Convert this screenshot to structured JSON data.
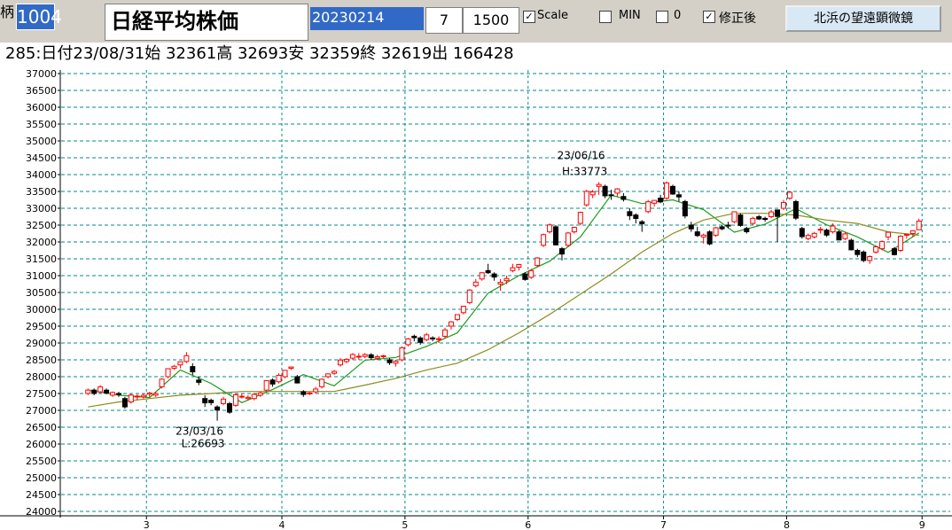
{
  "toolbar": {
    "label": "柄",
    "code": "1004",
    "name": "日経平均株価",
    "date": "20230214",
    "period": "7",
    "count": "1500",
    "scale": "Scale",
    "min": "MIN",
    "zero": "0",
    "adjusted": "修正後",
    "button": "北浜の望遠顕微鏡"
  },
  "info": "285:日付23/08/31始 32361高 32693安 32359終 32619出 166428",
  "chart_data": {
    "type": "candlestick",
    "up_color": "#ff0000",
    "down_color": "#000000",
    "grid": true,
    "grid_color": "#008b8b",
    "ylim": [
      24000,
      37000
    ],
    "yticks": [
      24000,
      24500,
      25000,
      25500,
      26000,
      26500,
      27000,
      27500,
      28000,
      28500,
      29000,
      29500,
      30000,
      30500,
      31000,
      31500,
      32000,
      32500,
      33000,
      33500,
      34000,
      34500,
      35000,
      35500,
      36000,
      36500,
      37000
    ],
    "xlim": [
      -4,
      140
    ],
    "xticks": [
      {
        "value": 10,
        "label": "3"
      },
      {
        "value": 32,
        "label": "4"
      },
      {
        "value": 52,
        "label": "5"
      },
      {
        "value": 72,
        "label": "6"
      },
      {
        "value": 94,
        "label": "7"
      },
      {
        "value": 114,
        "label": "8"
      },
      {
        "value": 136,
        "label": "9"
      }
    ],
    "candles": [
      [
        27500,
        27650,
        27450,
        27602
      ],
      [
        27600,
        27650,
        27450,
        27501
      ],
      [
        27550,
        27750,
        27500,
        27696
      ],
      [
        27600,
        27650,
        27480,
        27513
      ],
      [
        27450,
        27560,
        27400,
        27531
      ],
      [
        27500,
        27550,
        27400,
        27473
      ],
      [
        27350,
        27400,
        27050,
        27104
      ],
      [
        27250,
        27500,
        27200,
        27453
      ],
      [
        27400,
        27480,
        27300,
        27423
      ],
      [
        27400,
        27500,
        27350,
        27445
      ],
      [
        27480,
        27550,
        27400,
        27516
      ],
      [
        27450,
        27550,
        27400,
        27498
      ],
      [
        27700,
        27950,
        27650,
        27927
      ],
      [
        28000,
        28250,
        27950,
        28237
      ],
      [
        28250,
        28350,
        28200,
        28309
      ],
      [
        28350,
        28450,
        28250,
        28444
      ],
      [
        28450,
        28730,
        28400,
        28623
      ],
      [
        28300,
        28400,
        28050,
        28143
      ],
      [
        27900,
        28000,
        27750,
        27832
      ],
      [
        27350,
        27450,
        27100,
        27222
      ],
      [
        27300,
        27350,
        27150,
        27229
      ],
      [
        27100,
        27150,
        26693,
        27010
      ],
      [
        27200,
        27400,
        27150,
        27333
      ],
      [
        27200,
        27250,
        26900,
        26945
      ],
      [
        27150,
        27500,
        27100,
        27466
      ],
      [
        27400,
        27500,
        27350,
        27419
      ],
      [
        27350,
        27450,
        27300,
        27385
      ],
      [
        27350,
        27500,
        27300,
        27476
      ],
      [
        27450,
        27550,
        27400,
        27518
      ],
      [
        27600,
        27900,
        27550,
        27883
      ],
      [
        27900,
        27950,
        27700,
        27782
      ],
      [
        27850,
        28100,
        27800,
        28041
      ],
      [
        28000,
        28200,
        27950,
        28188
      ],
      [
        28250,
        28300,
        28200,
        28287
      ],
      [
        28000,
        28050,
        27800,
        27813
      ],
      [
        27550,
        27600,
        27400,
        27472
      ],
      [
        27500,
        27550,
        27450,
        27518
      ],
      [
        27550,
        27700,
        27500,
        27633
      ],
      [
        27700,
        27950,
        27650,
        27923
      ],
      [
        28000,
        28100,
        27950,
        28082
      ],
      [
        28100,
        28200,
        28050,
        28156
      ],
      [
        28350,
        28550,
        28300,
        28493
      ],
      [
        28450,
        28550,
        28400,
        28514
      ],
      [
        28550,
        28700,
        28500,
        28658
      ],
      [
        28600,
        28700,
        28500,
        28606
      ],
      [
        28600,
        28700,
        28550,
        28657
      ],
      [
        28650,
        28700,
        28500,
        28564
      ],
      [
        28550,
        28650,
        28500,
        28593
      ],
      [
        28600,
        28650,
        28550,
        28620
      ],
      [
        28500,
        28550,
        28350,
        28416
      ],
      [
        28400,
        28500,
        28300,
        28457
      ],
      [
        28500,
        28900,
        28450,
        28856
      ],
      [
        28950,
        29150,
        28900,
        29123
      ],
      [
        29200,
        29250,
        29050,
        29157
      ],
      [
        29150,
        29200,
        28950,
        29019
      ],
      [
        29100,
        29300,
        29050,
        29242
      ],
      [
        29150,
        29200,
        29050,
        29122
      ],
      [
        29100,
        29200,
        29000,
        29126
      ],
      [
        29200,
        29450,
        29150,
        29388
      ],
      [
        29500,
        29650,
        29400,
        29626
      ],
      [
        29700,
        29850,
        29650,
        29842
      ],
      [
        29900,
        30100,
        29850,
        30093
      ],
      [
        30200,
        30600,
        30150,
        30573
      ],
      [
        30700,
        30900,
        30650,
        30808
      ],
      [
        30900,
        31100,
        30850,
        31086
      ],
      [
        31150,
        31350,
        31050,
        31086
      ],
      [
        31050,
        31100,
        30850,
        30957
      ],
      [
        30750,
        30900,
        30550,
        30801
      ],
      [
        30850,
        31000,
        30750,
        30916
      ],
      [
        31150,
        31350,
        31100,
        31233
      ],
      [
        31250,
        31350,
        31150,
        31328
      ],
      [
        31050,
        31100,
        30850,
        30887
      ],
      [
        30950,
        31200,
        30900,
        31148
      ],
      [
        31300,
        31550,
        31250,
        31524
      ],
      [
        31900,
        32250,
        31850,
        32217
      ],
      [
        32300,
        32550,
        32250,
        32506
      ],
      [
        32450,
        32500,
        31900,
        31913
      ],
      [
        31800,
        31850,
        31450,
        31641
      ],
      [
        31900,
        32300,
        31850,
        32265
      ],
      [
        32300,
        32450,
        32250,
        32434
      ],
      [
        32550,
        32900,
        32500,
        32880
      ],
      [
        33100,
        33550,
        33050,
        33502
      ],
      [
        33400,
        33550,
        33300,
        33485
      ],
      [
        33650,
        33773,
        33400,
        33706
      ],
      [
        33650,
        33700,
        33300,
        33370
      ],
      [
        33400,
        33550,
        33250,
        33388
      ],
      [
        33450,
        33600,
        33350,
        33575
      ],
      [
        33350,
        33450,
        33200,
        33264
      ],
      [
        32900,
        33000,
        32650,
        32781
      ],
      [
        32800,
        32850,
        32550,
        32698
      ],
      [
        32600,
        32650,
        32300,
        32538
      ],
      [
        32900,
        33250,
        32850,
        33193
      ],
      [
        33150,
        33250,
        33050,
        33234
      ],
      [
        33300,
        33400,
        33150,
        33189
      ],
      [
        33300,
        33800,
        33250,
        33753
      ],
      [
        33650,
        33700,
        33400,
        33422
      ],
      [
        33400,
        33500,
        33200,
        33338
      ],
      [
        33200,
        33250,
        32700,
        32773
      ],
      [
        32500,
        32600,
        32300,
        32388
      ],
      [
        32300,
        32450,
        32150,
        32189
      ],
      [
        32150,
        32250,
        31950,
        32203
      ],
      [
        32300,
        32350,
        31900,
        31943
      ],
      [
        32200,
        32450,
        32150,
        32419
      ],
      [
        32450,
        32500,
        32350,
        32391
      ],
      [
        32500,
        32600,
        32400,
        32493
      ],
      [
        32600,
        32900,
        32550,
        32896
      ],
      [
        32800,
        32850,
        32450,
        32490
      ],
      [
        32400,
        32450,
        32250,
        32304
      ],
      [
        32550,
        32750,
        32500,
        32700
      ],
      [
        32750,
        32800,
        32650,
        32682
      ],
      [
        32700,
        32750,
        32600,
        32668
      ],
      [
        32750,
        32950,
        32700,
        32891
      ],
      [
        32950,
        32950,
        32000,
        32759
      ],
      [
        33000,
        33250,
        32950,
        33172
      ],
      [
        33300,
        33500,
        33250,
        33476
      ],
      [
        33200,
        33250,
        32650,
        32707
      ],
      [
        32400,
        32450,
        32100,
        32159
      ],
      [
        32100,
        32250,
        32050,
        32192
      ],
      [
        32150,
        32300,
        32100,
        32254
      ],
      [
        32350,
        32450,
        32250,
        32377
      ],
      [
        32350,
        32400,
        32150,
        32204
      ],
      [
        32300,
        32550,
        32250,
        32473
      ],
      [
        32300,
        32350,
        32050,
        32059
      ],
      [
        32100,
        32300,
        32050,
        32238
      ],
      [
        32050,
        32100,
        31750,
        31766
      ],
      [
        31750,
        31800,
        31550,
        31626
      ],
      [
        31700,
        31750,
        31400,
        31450
      ],
      [
        31450,
        31600,
        31350,
        31566
      ],
      [
        31700,
        31900,
        31650,
        31856
      ],
      [
        31800,
        32050,
        31750,
        32010
      ],
      [
        32150,
        32300,
        32050,
        32287
      ],
      [
        31800,
        31850,
        31600,
        31624
      ],
      [
        31750,
        32200,
        31700,
        32169
      ],
      [
        32200,
        32250,
        32100,
        32227
      ],
      [
        32250,
        32350,
        32150,
        32333
      ],
      [
        32361,
        32693,
        32359,
        32619
      ]
    ],
    "series": [
      {
        "color": "#1e9a1e",
        "x": [
          0,
          5,
          10,
          15,
          20,
          25,
          30,
          35,
          40,
          45,
          50,
          55,
          60,
          65,
          70,
          75,
          80,
          85,
          90,
          95,
          100,
          105,
          110,
          115,
          120,
          125,
          130,
          135
        ],
        "values": [
          27600,
          27450,
          27380,
          28200,
          27800,
          27230,
          27620,
          28060,
          27730,
          28490,
          28570,
          28900,
          29300,
          30480,
          31000,
          31430,
          32150,
          33390,
          33140,
          33250,
          32960,
          32290,
          32530,
          32990,
          32510,
          32150,
          31690,
          32270
        ]
      },
      {
        "color": "#8c8c1e",
        "x": [
          0,
          5,
          10,
          15,
          20,
          25,
          30,
          35,
          40,
          45,
          50,
          55,
          60,
          65,
          70,
          75,
          80,
          85,
          90,
          95,
          100,
          105,
          110,
          115,
          120,
          125,
          130,
          135
        ],
        "values": [
          27100,
          27250,
          27350,
          27450,
          27500,
          27560,
          27560,
          27560,
          27560,
          27750,
          27950,
          28200,
          28400,
          28800,
          29300,
          29850,
          30450,
          31050,
          31700,
          32250,
          32650,
          32850,
          32850,
          32800,
          32650,
          32550,
          32300,
          32200
        ]
      }
    ],
    "annotations": [
      {
        "date": "23/06/16",
        "label": "H:33773",
        "value": 33773
      },
      {
        "date": "23/03/16",
        "label": "L:26693",
        "value": 26693
      }
    ]
  }
}
